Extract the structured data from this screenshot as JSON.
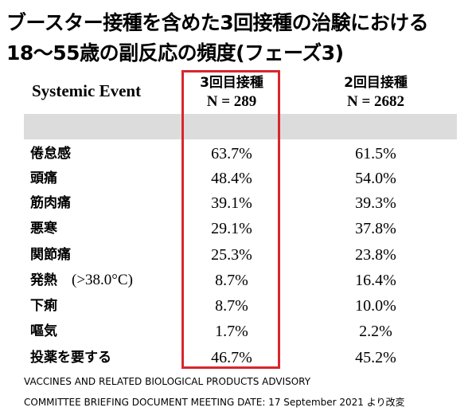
{
  "title": {
    "line1": "ブースター接種を含めた3回接種の治験における",
    "line2": "18〜55歳の副反応の頻度(フェーズ3)"
  },
  "table": {
    "event_header": "Systemic Event",
    "col1": {
      "label": "3回目接種",
      "n": "N = 289"
    },
    "col2": {
      "label": "2回目接種",
      "n": "N = 2682"
    },
    "rows": [
      {
        "label": "倦怠感",
        "note": "",
        "v1": "63.7%",
        "v2": "61.5%"
      },
      {
        "label": "頭痛",
        "note": "",
        "v1": "48.4%",
        "v2": "54.0%"
      },
      {
        "label": "筋肉痛",
        "note": "",
        "v1": "39.1%",
        "v2": "39.3%"
      },
      {
        "label": "悪寒",
        "note": "",
        "v1": "29.1%",
        "v2": "37.8%"
      },
      {
        "label": "関節痛",
        "note": "",
        "v1": "25.3%",
        "v2": "23.8%"
      },
      {
        "label": "発熱",
        "note": "(>38.0°C)",
        "v1": "8.7%",
        "v2": "16.4%"
      },
      {
        "label": "下痢",
        "note": "",
        "v1": "8.7%",
        "v2": "10.0%"
      },
      {
        "label": "嘔気",
        "note": "",
        "v1": "1.7%",
        "v2": "2.2%"
      },
      {
        "label": "投薬を要する",
        "note": "",
        "v1": "46.7%",
        "v2": "45.2%"
      }
    ],
    "highlight_color": "#d9262c",
    "band_color": "#dcdcdc"
  },
  "footer": {
    "line1": "VACCINES AND RELATED BIOLOGICAL PRODUCTS ADVISORY",
    "line2": "COMMITTEE BRIEFING DOCUMENT MEETING DATE: 17 September 2021 より改変"
  }
}
